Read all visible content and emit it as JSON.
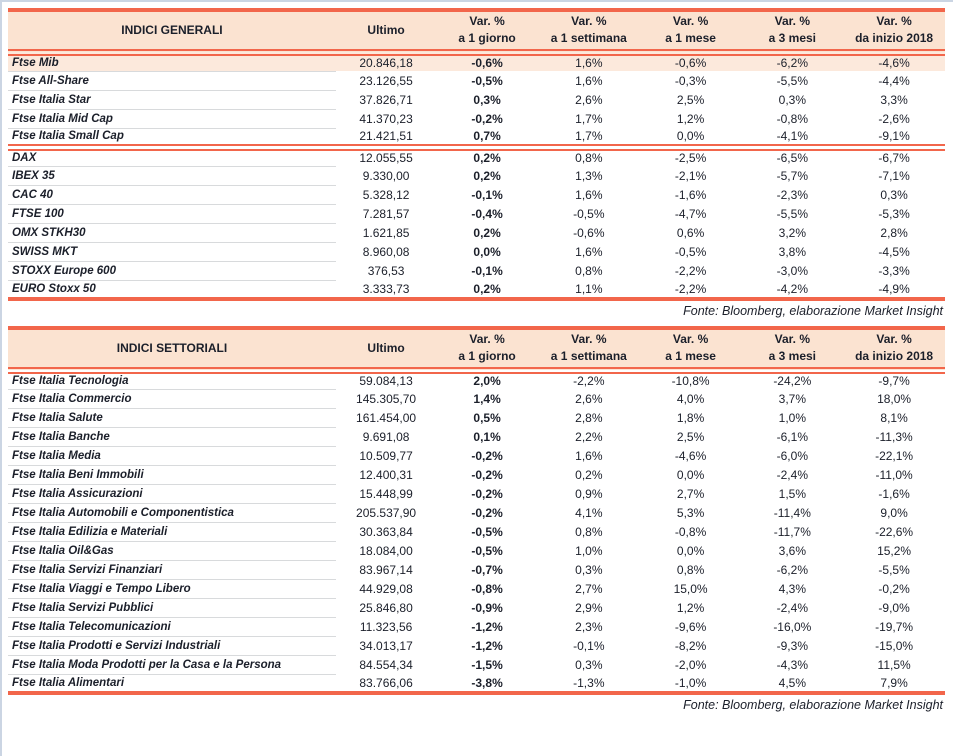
{
  "colors": {
    "accent": "#F2664B",
    "header_bg": "#FBE3D1",
    "highlight_row_bg": "#FCE9DC",
    "ink": "#1B1F2A",
    "row_divider": "#D8DADC",
    "page_edge": "#CBD5E3"
  },
  "tables": [
    {
      "title": "INDICI GENERALI",
      "columns": [
        {
          "line1": "Ultimo",
          "line2": ""
        },
        {
          "line1": "Var. %",
          "line2": "a 1 giorno"
        },
        {
          "line1": "Var. %",
          "line2": "a 1 settimana"
        },
        {
          "line1": "Var. %",
          "line2": "a 1 mese"
        },
        {
          "line1": "Var. %",
          "line2": "a 3 mesi"
        },
        {
          "line1": "Var. %",
          "line2": "da inizio 2018"
        }
      ],
      "groups": [
        {
          "rows": [
            {
              "name": "Ftse Mib",
              "values": [
                "20.846,18",
                "-0,6%",
                "1,6%",
                "-0,6%",
                "-6,2%",
                "-4,6%"
              ],
              "highlight": true
            },
            {
              "name": "Ftse All-Share",
              "values": [
                "23.126,55",
                "-0,5%",
                "1,6%",
                "-0,3%",
                "-5,5%",
                "-4,4%"
              ]
            },
            {
              "name": "Ftse Italia Star",
              "values": [
                "37.826,71",
                "0,3%",
                "2,6%",
                "2,5%",
                "0,3%",
                "3,3%"
              ]
            },
            {
              "name": "Ftse Italia Mid Cap",
              "values": [
                "41.370,23",
                "-0,2%",
                "1,7%",
                "1,2%",
                "-0,8%",
                "-2,6%"
              ]
            },
            {
              "name": "Ftse Italia Small Cap",
              "values": [
                "21.421,51",
                "0,7%",
                "1,7%",
                "0,0%",
                "-4,1%",
                "-9,1%"
              ]
            }
          ]
        },
        {
          "rows": [
            {
              "name": "DAX",
              "values": [
                "12.055,55",
                "0,2%",
                "0,8%",
                "-2,5%",
                "-6,5%",
                "-6,7%"
              ]
            },
            {
              "name": "IBEX 35",
              "values": [
                "9.330,00",
                "0,2%",
                "1,3%",
                "-2,1%",
                "-5,7%",
                "-7,1%"
              ]
            },
            {
              "name": "CAC 40",
              "values": [
                "5.328,12",
                "-0,1%",
                "1,6%",
                "-1,6%",
                "-2,3%",
                "0,3%"
              ]
            },
            {
              "name": "FTSE 100",
              "values": [
                "7.281,57",
                "-0,4%",
                "-0,5%",
                "-4,7%",
                "-5,5%",
                "-5,3%"
              ]
            },
            {
              "name": "OMX STKH30",
              "values": [
                "1.621,85",
                "0,2%",
                "-0,6%",
                "0,6%",
                "3,2%",
                "2,8%"
              ]
            },
            {
              "name": "SWISS MKT",
              "values": [
                "8.960,08",
                "0,0%",
                "1,6%",
                "-0,5%",
                "3,8%",
                "-4,5%"
              ]
            },
            {
              "name": "STOXX Europe 600",
              "values": [
                "376,53",
                "-0,1%",
                "0,8%",
                "-2,2%",
                "-3,0%",
                "-3,3%"
              ]
            },
            {
              "name": "EURO Stoxx 50",
              "values": [
                "3.333,73",
                "0,2%",
                "1,1%",
                "-2,2%",
                "-4,2%",
                "-4,9%"
              ]
            }
          ]
        }
      ],
      "source_note": "Fonte: Bloomberg, elaborazione Market Insight"
    },
    {
      "title": "INDICI SETTORIALI",
      "columns": [
        {
          "line1": "Ultimo",
          "line2": ""
        },
        {
          "line1": "Var. %",
          "line2": "a 1 giorno"
        },
        {
          "line1": "Var. %",
          "line2": "a 1 settimana"
        },
        {
          "line1": "Var. %",
          "line2": "a 1 mese"
        },
        {
          "line1": "Var. %",
          "line2": "a 3 mesi"
        },
        {
          "line1": "Var. %",
          "line2": "da inizio 2018"
        }
      ],
      "groups": [
        {
          "rows": [
            {
              "name": "Ftse Italia Tecnologia",
              "values": [
                "59.084,13",
                "2,0%",
                "-2,2%",
                "-10,8%",
                "-24,2%",
                "-9,7%"
              ]
            },
            {
              "name": "Ftse Italia Commercio",
              "values": [
                "145.305,70",
                "1,4%",
                "2,6%",
                "4,0%",
                "3,7%",
                "18,0%"
              ]
            },
            {
              "name": "Ftse Italia Salute",
              "values": [
                "161.454,00",
                "0,5%",
                "2,8%",
                "1,8%",
                "1,0%",
                "8,1%"
              ]
            },
            {
              "name": "Ftse Italia Banche",
              "values": [
                "9.691,08",
                "0,1%",
                "2,2%",
                "2,5%",
                "-6,1%",
                "-11,3%"
              ]
            },
            {
              "name": "Ftse Italia Media",
              "values": [
                "10.509,77",
                "-0,2%",
                "1,6%",
                "-4,6%",
                "-6,0%",
                "-22,1%"
              ]
            },
            {
              "name": "Ftse Italia Beni Immobili",
              "values": [
                "12.400,31",
                "-0,2%",
                "0,2%",
                "0,0%",
                "-2,4%",
                "-11,0%"
              ]
            },
            {
              "name": "Ftse Italia Assicurazioni",
              "values": [
                "15.448,99",
                "-0,2%",
                "0,9%",
                "2,7%",
                "1,5%",
                "-1,6%"
              ]
            },
            {
              "name": "Ftse Italia Automobili e Componentistica",
              "values": [
                "205.537,90",
                "-0,2%",
                "4,1%",
                "5,3%",
                "-11,4%",
                "9,0%"
              ]
            },
            {
              "name": "Ftse Italia Edilizia e Materiali",
              "values": [
                "30.363,84",
                "-0,5%",
                "0,8%",
                "-0,8%",
                "-11,7%",
                "-22,6%"
              ]
            },
            {
              "name": "Ftse Italia Oil&Gas",
              "values": [
                "18.084,00",
                "-0,5%",
                "1,0%",
                "0,0%",
                "3,6%",
                "15,2%"
              ]
            },
            {
              "name": "Ftse Italia Servizi Finanziari",
              "values": [
                "83.967,14",
                "-0,7%",
                "0,3%",
                "0,8%",
                "-6,2%",
                "-5,5%"
              ]
            },
            {
              "name": "Ftse Italia Viaggi e Tempo Libero",
              "values": [
                "44.929,08",
                "-0,8%",
                "2,7%",
                "15,0%",
                "4,3%",
                "-0,2%"
              ]
            },
            {
              "name": "Ftse Italia Servizi Pubblici",
              "values": [
                "25.846,80",
                "-0,9%",
                "2,9%",
                "1,2%",
                "-2,4%",
                "-9,0%"
              ]
            },
            {
              "name": "Ftse Italia Telecomunicazioni",
              "values": [
                "11.323,56",
                "-1,2%",
                "2,3%",
                "-9,6%",
                "-16,0%",
                "-19,7%"
              ]
            },
            {
              "name": "Ftse Italia Prodotti e Servizi Industriali",
              "values": [
                "34.013,17",
                "-1,2%",
                "-0,1%",
                "-8,2%",
                "-9,3%",
                "-15,0%"
              ]
            },
            {
              "name": "Ftse Italia Moda Prodotti per la Casa e la Persona",
              "values": [
                "84.554,34",
                "-1,5%",
                "0,3%",
                "-2,0%",
                "-4,3%",
                "11,5%"
              ]
            },
            {
              "name": "Ftse Italia Alimentari",
              "values": [
                "83.766,06",
                "-3,8%",
                "-1,3%",
                "-1,0%",
                "4,5%",
                "7,9%"
              ]
            }
          ]
        }
      ],
      "source_note": "Fonte: Bloomberg, elaborazione Market Insight"
    }
  ]
}
